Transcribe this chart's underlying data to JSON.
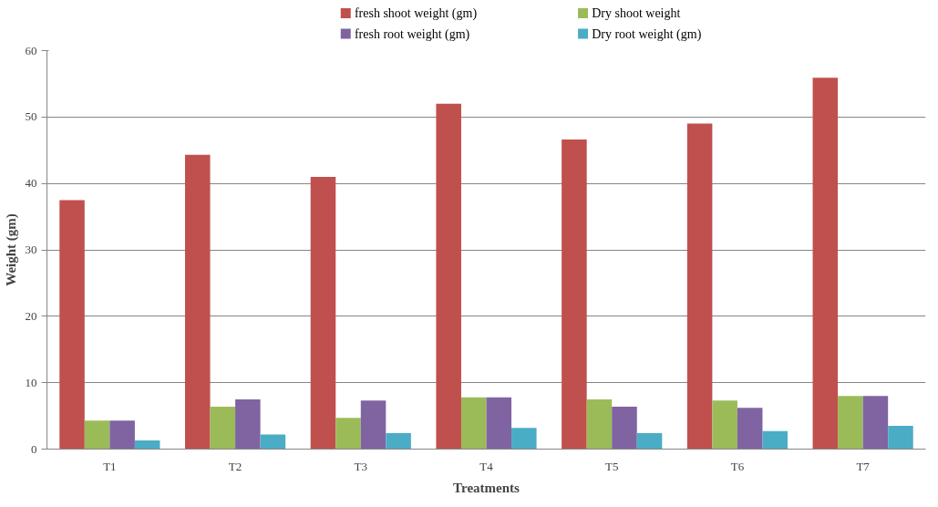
{
  "chart_data": {
    "type": "bar",
    "xlabel": "Treatments",
    "ylabel": "Weight (gm)",
    "categories": [
      "T1",
      "T2",
      "T3",
      "T4",
      "T5",
      "T6",
      "T7"
    ],
    "series": [
      {
        "name": "fresh shoot weight (gm)",
        "color": "#c0504d",
        "values": [
          37.5,
          44.3,
          41,
          52,
          46.6,
          49,
          55.9
        ]
      },
      {
        "name": "Dry shoot weight",
        "color": "#9bbb59",
        "values": [
          4.3,
          6.4,
          4.7,
          7.8,
          7.5,
          7.3,
          8
        ]
      },
      {
        "name": "fresh root weight (gm)",
        "color": "#8064a2",
        "values": [
          4.3,
          7.5,
          7.3,
          7.8,
          6.4,
          6.2,
          8
        ]
      },
      {
        "name": "Dry root weight (gm)",
        "color": "#4bacc6",
        "values": [
          1.3,
          2.2,
          2.4,
          3.2,
          2.4,
          2.7,
          3.5
        ]
      }
    ],
    "ylim": [
      0,
      60
    ],
    "yticks": [
      0,
      10,
      20,
      30,
      40,
      50,
      60
    ],
    "grid": "y",
    "legend": "top"
  }
}
